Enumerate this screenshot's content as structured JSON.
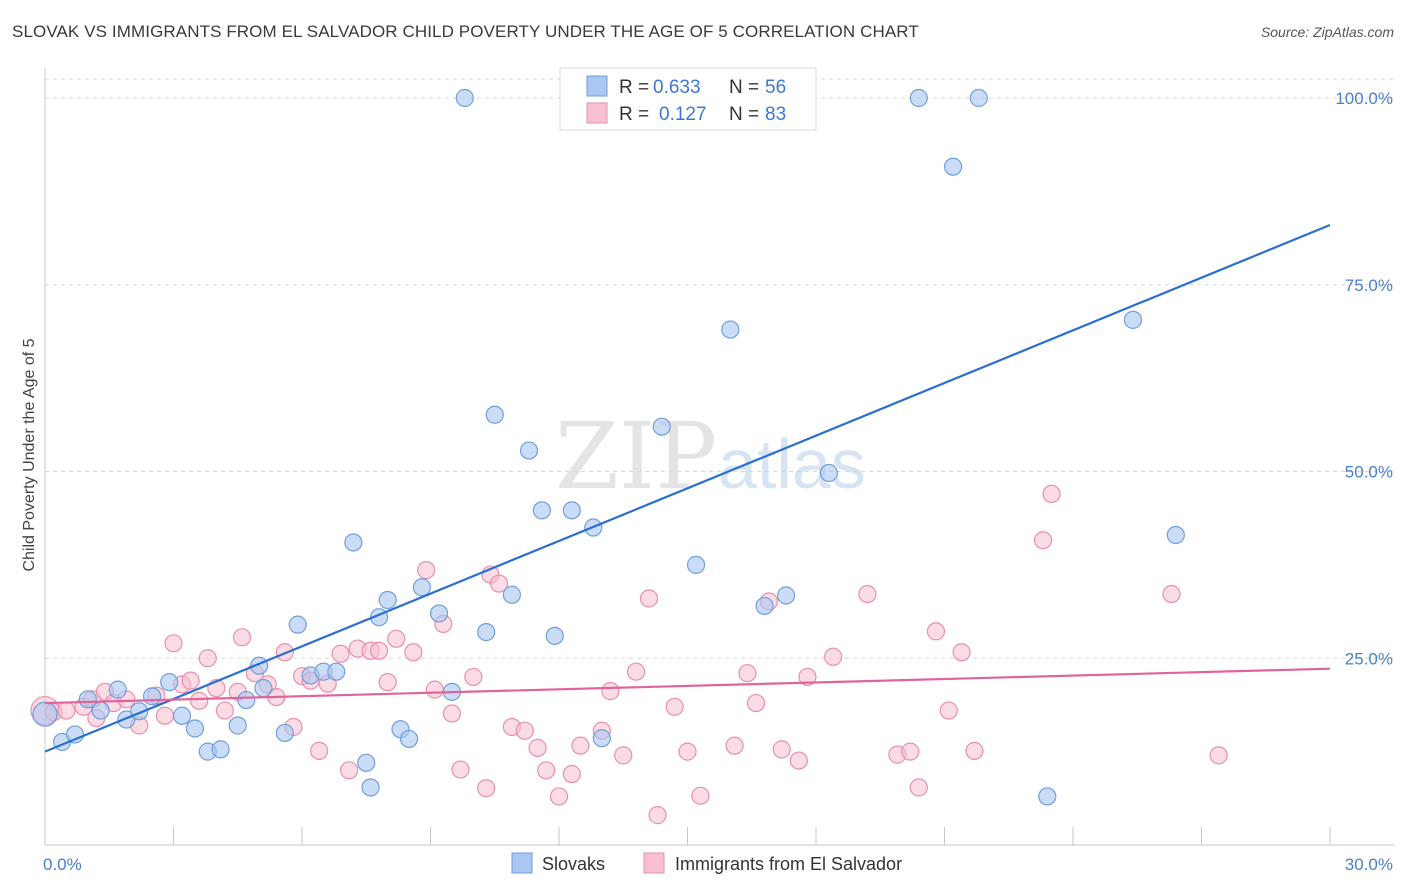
{
  "title": "SLOVAK VS IMMIGRANTS FROM EL SALVADOR CHILD POVERTY UNDER THE AGE OF 5 CORRELATION CHART",
  "source": "Source: ZipAtlas.com",
  "watermark": {
    "zip": "ZIP",
    "atlas": "atlas"
  },
  "colors": {
    "blue_fill": "#a9c7f0",
    "blue_stroke": "#6f9fdc",
    "blue_line": "#2a6fd0",
    "pink_fill": "#f7bfd0",
    "pink_stroke": "#e98fae",
    "pink_line": "#e0649a",
    "grid": "#d8d8d8",
    "tick_text": "#4a7fcf"
  },
  "legend": {
    "rows": [
      {
        "r_label": "R =",
        "r_value": "0.633",
        "n_label": "N =",
        "n_value": "56"
      },
      {
        "r_label": "R =",
        "r_value": "0.127",
        "n_label": "N =",
        "n_value": "83"
      }
    ]
  },
  "chart_data": {
    "type": "scatter",
    "title": "SLOVAK VS IMMIGRANTS FROM EL SALVADOR CHILD POVERTY UNDER THE AGE OF 5 CORRELATION CHART",
    "xlabel": "",
    "ylabel": "Child Poverty Under the Age of 5",
    "xlim": [
      0,
      30
    ],
    "ylim": [
      0,
      100
    ],
    "x_tick_labels": [
      "0.0%",
      "30.0%"
    ],
    "y_ticks": [
      25,
      50,
      75,
      100
    ],
    "y_tick_labels": [
      "25.0%",
      "50.0%",
      "75.0%",
      "100.0%"
    ],
    "grid": true,
    "legend_position": "top-center",
    "series": [
      {
        "name": "Slovaks",
        "color": "#a9c7f0",
        "trend": {
          "x": [
            0,
            30
          ],
          "y": [
            12.5,
            83.0
          ]
        },
        "points": [
          [
            0.0,
            17.5
          ],
          [
            0.4,
            13.8
          ],
          [
            0.7,
            14.8
          ],
          [
            1.0,
            19.5
          ],
          [
            1.3,
            18.0
          ],
          [
            1.7,
            20.8
          ],
          [
            1.9,
            16.8
          ],
          [
            2.2,
            17.9
          ],
          [
            2.5,
            19.9
          ],
          [
            2.9,
            21.8
          ],
          [
            3.2,
            17.3
          ],
          [
            3.5,
            15.6
          ],
          [
            3.8,
            12.5
          ],
          [
            4.1,
            12.8
          ],
          [
            4.5,
            16.0
          ],
          [
            4.7,
            19.4
          ],
          [
            5.0,
            24.0
          ],
          [
            5.1,
            21.0
          ],
          [
            5.6,
            15.0
          ],
          [
            5.9,
            29.5
          ],
          [
            6.2,
            22.7
          ],
          [
            6.5,
            23.2
          ],
          [
            6.8,
            23.2
          ],
          [
            7.2,
            40.5
          ],
          [
            7.5,
            11.0
          ],
          [
            7.6,
            7.7
          ],
          [
            7.8,
            30.5
          ],
          [
            8.0,
            32.8
          ],
          [
            8.3,
            15.5
          ],
          [
            8.5,
            14.2
          ],
          [
            8.8,
            34.5
          ],
          [
            9.2,
            31.0
          ],
          [
            9.5,
            20.5
          ],
          [
            9.8,
            100.0
          ],
          [
            10.3,
            28.5
          ],
          [
            10.5,
            57.6
          ],
          [
            10.9,
            33.5
          ],
          [
            11.3,
            52.8
          ],
          [
            11.6,
            44.8
          ],
          [
            11.9,
            28.0
          ],
          [
            12.3,
            44.8
          ],
          [
            12.8,
            42.5
          ],
          [
            13.0,
            14.3
          ],
          [
            14.4,
            56.0
          ],
          [
            15.2,
            37.5
          ],
          [
            16.0,
            69.0
          ],
          [
            16.3,
            100.0
          ],
          [
            16.8,
            32.0
          ],
          [
            17.3,
            33.4
          ],
          [
            18.3,
            49.8
          ],
          [
            20.4,
            100.0
          ],
          [
            21.2,
            90.8
          ],
          [
            21.8,
            100.0
          ],
          [
            23.4,
            6.5
          ],
          [
            25.4,
            70.3
          ],
          [
            26.4,
            41.5
          ]
        ]
      },
      {
        "name": "Immigrants from El Salvador",
        "color": "#f7bfd0",
        "trend": {
          "x": [
            0,
            30
          ],
          "y": [
            19.0,
            23.6
          ]
        },
        "points": [
          [
            0.0,
            18.0
          ],
          [
            0.2,
            17.8
          ],
          [
            0.5,
            18.0
          ],
          [
            0.9,
            18.5
          ],
          [
            1.1,
            19.5
          ],
          [
            1.2,
            17.0
          ],
          [
            1.4,
            20.5
          ],
          [
            1.6,
            19.0
          ],
          [
            1.9,
            19.5
          ],
          [
            2.2,
            16.0
          ],
          [
            2.6,
            20.0
          ],
          [
            2.8,
            17.3
          ],
          [
            3.0,
            27.0
          ],
          [
            3.2,
            21.5
          ],
          [
            3.4,
            22.0
          ],
          [
            3.6,
            19.3
          ],
          [
            3.8,
            25.0
          ],
          [
            4.0,
            21.0
          ],
          [
            4.2,
            18.0
          ],
          [
            4.5,
            20.5
          ],
          [
            4.6,
            27.8
          ],
          [
            4.9,
            23.0
          ],
          [
            5.2,
            21.5
          ],
          [
            5.4,
            19.8
          ],
          [
            5.6,
            25.8
          ],
          [
            5.8,
            15.8
          ],
          [
            6.0,
            22.6
          ],
          [
            6.2,
            22.0
          ],
          [
            6.4,
            12.6
          ],
          [
            6.6,
            21.6
          ],
          [
            6.9,
            25.6
          ],
          [
            7.1,
            10.0
          ],
          [
            7.3,
            26.3
          ],
          [
            7.6,
            26.0
          ],
          [
            7.8,
            26.0
          ],
          [
            8.0,
            21.8
          ],
          [
            8.2,
            27.6
          ],
          [
            8.6,
            25.8
          ],
          [
            8.9,
            36.8
          ],
          [
            9.1,
            20.8
          ],
          [
            9.3,
            29.6
          ],
          [
            9.5,
            17.6
          ],
          [
            9.7,
            10.1
          ],
          [
            10.0,
            22.5
          ],
          [
            10.3,
            7.6
          ],
          [
            10.4,
            36.2
          ],
          [
            10.6,
            35.0
          ],
          [
            10.9,
            15.8
          ],
          [
            11.2,
            15.3
          ],
          [
            11.5,
            13.0
          ],
          [
            11.7,
            10.0
          ],
          [
            12.0,
            6.5
          ],
          [
            12.3,
            9.5
          ],
          [
            12.5,
            13.3
          ],
          [
            13.0,
            15.3
          ],
          [
            13.2,
            20.6
          ],
          [
            13.5,
            12.0
          ],
          [
            13.8,
            23.2
          ],
          [
            14.1,
            33.0
          ],
          [
            14.3,
            4.0
          ],
          [
            14.7,
            18.5
          ],
          [
            15.0,
            12.5
          ],
          [
            15.3,
            6.6
          ],
          [
            16.1,
            13.3
          ],
          [
            16.4,
            23.0
          ],
          [
            16.6,
            19.0
          ],
          [
            16.9,
            32.6
          ],
          [
            17.2,
            12.8
          ],
          [
            17.6,
            11.3
          ],
          [
            17.8,
            22.5
          ],
          [
            18.4,
            25.2
          ],
          [
            19.2,
            33.6
          ],
          [
            19.9,
            12.1
          ],
          [
            20.2,
            12.5
          ],
          [
            20.4,
            7.7
          ],
          [
            20.8,
            28.6
          ],
          [
            21.1,
            18.0
          ],
          [
            21.4,
            25.8
          ],
          [
            21.7,
            12.6
          ],
          [
            23.3,
            40.8
          ],
          [
            23.5,
            47.0
          ],
          [
            26.3,
            33.6
          ],
          [
            27.4,
            12.0
          ]
        ]
      }
    ]
  },
  "bottom_legend": {
    "items": [
      {
        "label": "Slovaks"
      },
      {
        "label": "Immigrants from El Salvador"
      }
    ]
  }
}
